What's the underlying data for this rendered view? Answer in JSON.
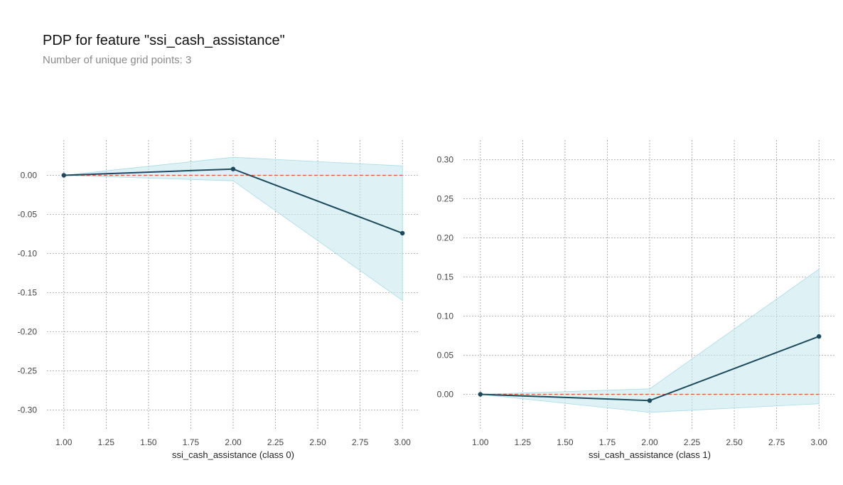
{
  "header": {
    "title": "PDP for feature \"ssi_cash_assistance\"",
    "subtitle": "Number of unique grid points: 3"
  },
  "colors": {
    "line": "#1a4a5c",
    "band": "#c8e9f0",
    "band_edge": "#a8dbe6",
    "baseline": "#e8553a",
    "grid": "#9a9a9a"
  },
  "chart_data": [
    {
      "type": "line",
      "xlabel": "ssi_cash_assistance (class 0)",
      "x": [
        1.0,
        2.0,
        3.0
      ],
      "xticks": [
        "1.00",
        "1.25",
        "1.50",
        "1.75",
        "2.00",
        "2.25",
        "2.50",
        "2.75",
        "3.00"
      ],
      "yticks": [
        "0.00",
        "-0.05",
        "-0.10",
        "-0.15",
        "-0.20",
        "-0.25",
        "-0.30"
      ],
      "xlim": [
        0.9,
        3.1
      ],
      "ylim": [
        -0.325,
        0.045
      ],
      "series": [
        {
          "values": [
            0.0,
            0.008,
            -0.074
          ]
        }
      ],
      "band_upper": [
        0.0,
        0.023,
        0.012
      ],
      "band_lower": [
        0.0,
        -0.007,
        -0.16
      ],
      "baseline": 0.0,
      "grid": true
    },
    {
      "type": "line",
      "xlabel": "ssi_cash_assistance (class 1)",
      "x": [
        1.0,
        2.0,
        3.0
      ],
      "xticks": [
        "1.00",
        "1.25",
        "1.50",
        "1.75",
        "2.00",
        "2.25",
        "2.50",
        "2.75",
        "3.00"
      ],
      "yticks": [
        "0.30",
        "0.25",
        "0.20",
        "0.15",
        "0.10",
        "0.05",
        "0.00"
      ],
      "xlim": [
        0.9,
        3.1
      ],
      "ylim": [
        -0.045,
        0.325
      ],
      "series": [
        {
          "values": [
            0.0,
            -0.008,
            0.074
          ]
        }
      ],
      "band_upper": [
        0.0,
        0.007,
        0.16
      ],
      "band_lower": [
        0.0,
        -0.023,
        -0.012
      ],
      "baseline": 0.0,
      "grid": true
    }
  ]
}
